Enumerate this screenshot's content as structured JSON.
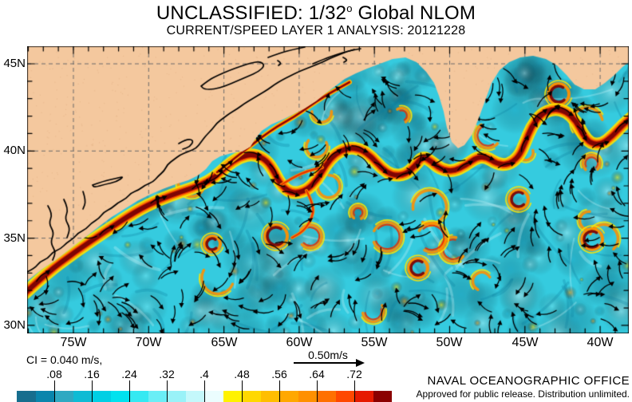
{
  "header": {
    "title_prefix": "UNCLASSIFIED: 1/32",
    "title_sup": "o",
    "title_suffix": " Global NLOM",
    "subtitle": "CURRENT/SPEED LAYER 1 ANALYSIS: 20121228"
  },
  "axes": {
    "lat": [
      {
        "label": "45N"
      },
      {
        "label": "40N"
      },
      {
        "label": "35N"
      },
      {
        "label": "30N"
      }
    ],
    "lon": [
      {
        "label": "75W"
      },
      {
        "label": "70W"
      },
      {
        "label": "65W"
      },
      {
        "label": "60W"
      },
      {
        "label": "55W"
      },
      {
        "label": "50W"
      },
      {
        "label": "45W"
      },
      {
        "label": "40W"
      }
    ]
  },
  "legend": {
    "ci": "CI = 0.040 m/s,",
    "vector_scale": "0.50m/s"
  },
  "colorbar": {
    "labels": [
      ".08",
      ".16",
      ".24",
      ".32",
      ".4",
      ".48",
      ".56",
      ".64",
      ".72"
    ],
    "colors": [
      "#176E8E",
      "#0A85AC",
      "#2FA9C2",
      "#0FBBD4",
      "#00CFE4",
      "#00E2EE",
      "#35E9F2",
      "#6AEEF6",
      "#99F2F8",
      "#C4F8FB",
      "#EBFDFE",
      "#FFF200",
      "#FFD800",
      "#FFBE00",
      "#FFA800",
      "#FF9000",
      "#FF7000",
      "#FF4800",
      "#E61A00",
      "#8B0000"
    ]
  },
  "footer": {
    "org": "NAVAL OCEANOGRAPHIC OFFICE",
    "approval": "Approved for public release. Distribution unlimited."
  },
  "palette": {
    "land": "#F4C89E",
    "land_speckle": "#D9A477",
    "grid": "#6A6A6A",
    "frame": "#000000",
    "ocean_base": "#35CBDF",
    "ocean_dark": "#0E93B4",
    "ocean_deep": "#0B7E9E",
    "ocean_light": "#8FEFF6",
    "ocean_pale": "#DCFCFE",
    "yellow": "#FFE400",
    "gold": "#FFC400",
    "orange": "#FF9000",
    "red": "#E63000",
    "maroon": "#7E0404",
    "arrow": "#000000"
  },
  "chart_data": {
    "type": "heatmap",
    "title": "UNCLASSIFIED: 1/32° Global NLOM",
    "subtitle": "CURRENT/SPEED LAYER 1 ANALYSIS: 20121228",
    "model": "NLOM",
    "resolution": "1/32°",
    "field": "CURRENT/SPEED LAYER 1",
    "analysis_date": "20121228",
    "units": "m/s",
    "x_tick_labels": [
      "75W",
      "70W",
      "65W",
      "60W",
      "55W",
      "50W",
      "45W",
      "40W"
    ],
    "y_tick_labels": [
      "45N",
      "40N",
      "35N",
      "30N"
    ],
    "x_range": "approx 78W to 38W",
    "y_range": "approx 30N to 46N",
    "contour_interval_m_s": 0.04,
    "reference_vector_m_s": 0.5,
    "colorbar_tick_values": [
      0.08,
      0.16,
      0.24,
      0.32,
      0.4,
      0.48,
      0.56,
      0.64,
      0.72
    ],
    "colorbar_bins": 20,
    "legend_position": "bottom",
    "grid": true,
    "credit": "NAVAL OCEANOGRAPHIC OFFICE"
  }
}
